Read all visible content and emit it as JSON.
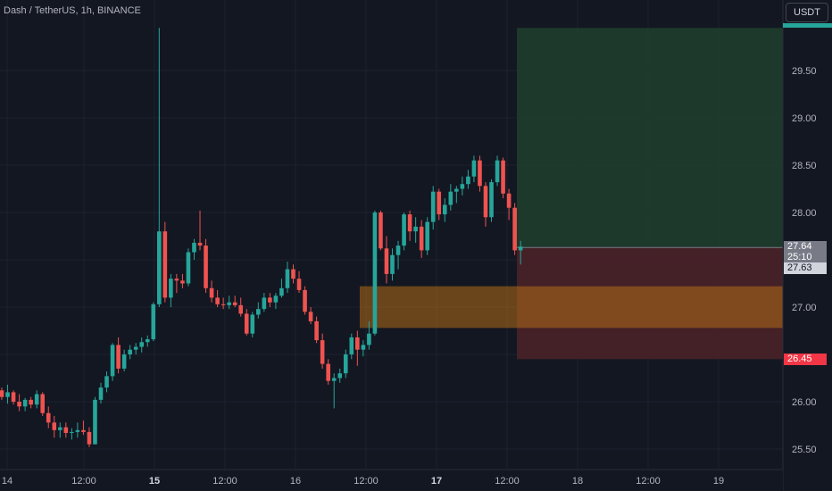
{
  "header": {
    "symbol_title": "Dash / TetherUS, 1h, BINANCE",
    "currency_button": "USDT"
  },
  "price_axis": {
    "labels": [
      "29.50",
      "29.00",
      "28.50",
      "28.00",
      "27.00",
      "26.00",
      "25.50"
    ]
  },
  "time_axis": {
    "labels": [
      "14",
      "12:00",
      "15",
      "12:00",
      "16",
      "12:00",
      "17",
      "12:00",
      "18",
      "12:00",
      "19"
    ]
  },
  "price_tags": {
    "current": "27.64",
    "countdown": "25:10",
    "entry": "27.63",
    "stop": "26.45"
  },
  "colors": {
    "up": "#26a69a",
    "down": "#ef5350",
    "background": "#131722",
    "profit_zone": "#1f3d2c",
    "loss_zone": "#4a2128",
    "order_block": "#b36b18"
  },
  "chart_data": {
    "type": "candlestick",
    "symbol": "Dash / TetherUS",
    "interval": "1h",
    "exchange": "BINANCE",
    "ylim": [
      25.3,
      30.0
    ],
    "candles": [
      [
        26.12,
        26.15,
        26.02,
        26.05
      ],
      [
        26.05,
        26.18,
        25.98,
        26.1
      ],
      [
        26.1,
        26.12,
        25.97,
        26.0
      ],
      [
        26.0,
        26.08,
        25.9,
        25.95
      ],
      [
        25.95,
        26.04,
        25.9,
        26.02
      ],
      [
        26.02,
        26.05,
        25.93,
        25.97
      ],
      [
        25.97,
        26.12,
        25.93,
        26.08
      ],
      [
        26.08,
        26.1,
        25.85,
        25.88
      ],
      [
        25.88,
        25.95,
        25.72,
        25.78
      ],
      [
        25.78,
        25.85,
        25.62,
        25.7
      ],
      [
        25.7,
        25.78,
        25.62,
        25.73
      ],
      [
        25.73,
        25.78,
        25.62,
        25.67
      ],
      [
        25.67,
        25.72,
        25.6,
        25.68
      ],
      [
        25.68,
        25.78,
        25.62,
        25.7
      ],
      [
        25.7,
        25.8,
        25.65,
        25.68
      ],
      [
        25.68,
        25.73,
        25.52,
        25.55
      ],
      [
        25.55,
        26.05,
        25.55,
        26.02
      ],
      [
        26.02,
        26.2,
        25.98,
        26.15
      ],
      [
        26.15,
        26.32,
        26.1,
        26.27
      ],
      [
        26.27,
        26.62,
        26.22,
        26.6
      ],
      [
        26.6,
        26.68,
        26.3,
        26.35
      ],
      [
        26.35,
        26.55,
        26.32,
        26.5
      ],
      [
        26.5,
        26.6,
        26.45,
        26.55
      ],
      [
        26.55,
        26.62,
        26.5,
        26.58
      ],
      [
        26.58,
        26.68,
        26.52,
        26.63
      ],
      [
        26.63,
        26.7,
        26.58,
        26.66
      ],
      [
        26.66,
        27.05,
        26.64,
        27.03
      ],
      [
        27.03,
        29.95,
        27.0,
        27.8
      ],
      [
        27.8,
        27.9,
        27.05,
        27.1
      ],
      [
        27.1,
        27.35,
        27.0,
        27.3
      ],
      [
        27.3,
        27.35,
        27.15,
        27.28
      ],
      [
        27.28,
        27.35,
        27.2,
        27.25
      ],
      [
        27.25,
        27.62,
        27.22,
        27.58
      ],
      [
        27.58,
        27.72,
        27.5,
        27.68
      ],
      [
        27.68,
        28.02,
        27.6,
        27.65
      ],
      [
        27.65,
        27.72,
        27.15,
        27.2
      ],
      [
        27.2,
        27.28,
        27.05,
        27.1
      ],
      [
        27.1,
        27.18,
        27.0,
        27.03
      ],
      [
        27.03,
        27.1,
        26.98,
        27.02
      ],
      [
        27.02,
        27.12,
        26.98,
        27.05
      ],
      [
        27.05,
        27.12,
        27.0,
        27.02
      ],
      [
        27.02,
        27.1,
        26.9,
        26.93
      ],
      [
        26.93,
        26.98,
        26.7,
        26.72
      ],
      [
        26.72,
        26.95,
        26.68,
        26.92
      ],
      [
        26.92,
        27.05,
        26.88,
        26.98
      ],
      [
        26.98,
        27.15,
        26.95,
        27.1
      ],
      [
        27.1,
        27.15,
        27.0,
        27.05
      ],
      [
        27.05,
        27.15,
        26.98,
        27.12
      ],
      [
        27.12,
        27.3,
        27.1,
        27.2
      ],
      [
        27.2,
        27.48,
        27.15,
        27.4
      ],
      [
        27.4,
        27.45,
        27.25,
        27.3
      ],
      [
        27.3,
        27.38,
        27.15,
        27.18
      ],
      [
        27.18,
        27.22,
        26.92,
        26.95
      ],
      [
        26.95,
        27.0,
        26.82,
        26.85
      ],
      [
        26.85,
        26.9,
        26.62,
        26.65
      ],
      [
        26.65,
        26.72,
        26.35,
        26.4
      ],
      [
        26.4,
        26.45,
        26.18,
        26.22
      ],
      [
        26.22,
        26.3,
        25.93,
        26.25
      ],
      [
        26.25,
        26.35,
        26.2,
        26.3
      ],
      [
        26.3,
        26.55,
        26.25,
        26.5
      ],
      [
        26.5,
        26.72,
        26.45,
        26.68
      ],
      [
        26.68,
        26.75,
        26.38,
        26.55
      ],
      [
        26.55,
        26.65,
        26.48,
        26.6
      ],
      [
        26.6,
        26.85,
        26.55,
        26.72
      ],
      [
        26.72,
        28.02,
        26.7,
        28.0
      ],
      [
        28.0,
        28.02,
        27.6,
        27.62
      ],
      [
        27.62,
        27.75,
        27.25,
        27.35
      ],
      [
        27.35,
        27.62,
        27.28,
        27.55
      ],
      [
        27.55,
        27.7,
        27.4,
        27.65
      ],
      [
        27.65,
        28.0,
        27.6,
        27.98
      ],
      [
        27.98,
        28.02,
        27.7,
        27.8
      ],
      [
        27.8,
        27.95,
        27.68,
        27.85
      ],
      [
        27.85,
        27.92,
        27.52,
        27.6
      ],
      [
        27.6,
        27.95,
        27.55,
        27.9
      ],
      [
        27.9,
        28.28,
        27.82,
        28.22
      ],
      [
        28.22,
        28.25,
        27.92,
        27.98
      ],
      [
        27.98,
        28.15,
        27.9,
        28.08
      ],
      [
        28.08,
        28.3,
        28.02,
        28.22
      ],
      [
        28.22,
        28.28,
        28.1,
        28.25
      ],
      [
        28.25,
        28.38,
        28.18,
        28.3
      ],
      [
        28.3,
        28.45,
        28.25,
        28.38
      ],
      [
        28.38,
        28.6,
        28.32,
        28.55
      ],
      [
        28.55,
        28.6,
        28.22,
        28.28
      ],
      [
        28.28,
        28.32,
        27.85,
        27.95
      ],
      [
        27.95,
        28.35,
        27.9,
        28.32
      ],
      [
        28.32,
        28.6,
        28.28,
        28.55
      ],
      [
        28.55,
        28.58,
        28.15,
        28.2
      ],
      [
        28.2,
        28.25,
        27.92,
        28.05
      ],
      [
        28.05,
        28.1,
        27.55,
        27.6
      ],
      [
        27.6,
        27.7,
        27.45,
        27.64
      ]
    ],
    "long_position": {
      "target": 29.95,
      "entry": 27.63,
      "stop": 26.45
    },
    "highlight_zone": {
      "from": 26.78,
      "to": 27.22
    }
  }
}
